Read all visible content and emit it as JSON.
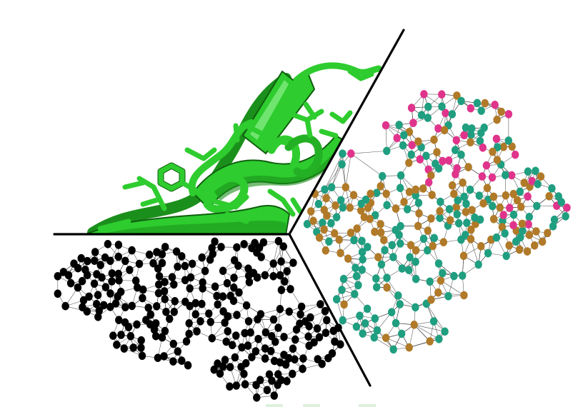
{
  "figure": {
    "panels": [
      "protein-cartoon",
      "atom-graph-unlabeled",
      "atom-graph-labeled"
    ]
  },
  "colors": {
    "background": "#ffffff",
    "protein_fill": "#2ecc2e",
    "protein_shade": "#1b8f1b",
    "protein_light": "#8cf08c",
    "unlabeled_node": "#000000",
    "edge": "#1a1a1a",
    "divider": "#000000",
    "node_class_teal": "#1f9e80",
    "node_class_magenta": "#e0348c",
    "node_class_brown": "#b07a28"
  },
  "icons": {
    "protein": "protein-ribbon-icon",
    "graph": "molecular-graph-icon"
  }
}
